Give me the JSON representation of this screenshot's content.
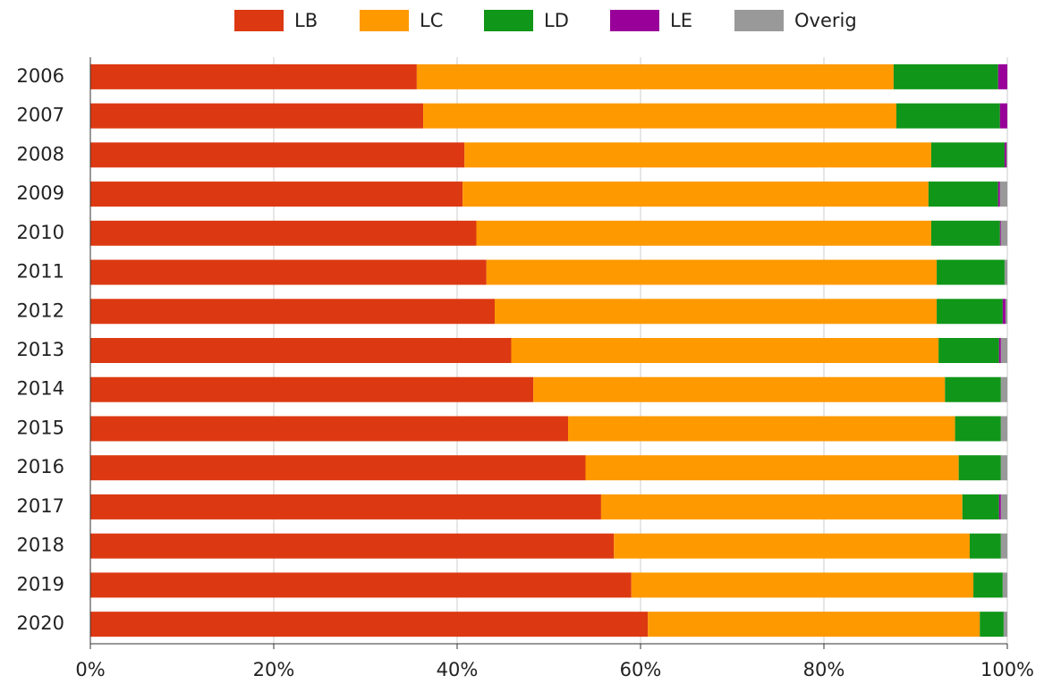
{
  "chart_data": {
    "type": "stacked_barh",
    "categories": [
      "2006",
      "2007",
      "2008",
      "2009",
      "2010",
      "2011",
      "2012",
      "2013",
      "2014",
      "2015",
      "2016",
      "2017",
      "2018",
      "2019",
      "2020"
    ],
    "series": [
      {
        "name": "LB",
        "color": "#dc3912",
        "values": [
          35.6,
          36.3,
          40.8,
          40.6,
          42.1,
          43.2,
          44.1,
          45.9,
          48.3,
          52.1,
          54.0,
          55.7,
          57.1,
          59.0,
          60.8
        ]
      },
      {
        "name": "LC",
        "color": "#ff9900",
        "values": [
          52.0,
          51.6,
          50.9,
          50.8,
          49.6,
          49.1,
          48.2,
          46.6,
          44.9,
          42.2,
          40.7,
          39.4,
          38.8,
          37.3,
          36.2
        ]
      },
      {
        "name": "LD",
        "color": "#109618",
        "values": [
          11.4,
          11.3,
          8.0,
          7.6,
          7.5,
          7.4,
          7.2,
          6.6,
          6.1,
          5.0,
          4.6,
          4.0,
          3.4,
          3.2,
          2.6
        ]
      },
      {
        "name": "LE",
        "color": "#990099",
        "values": [
          1.0,
          0.8,
          0.2,
          0.2,
          0.1,
          0,
          0.3,
          0.2,
          0,
          0,
          0,
          0.2,
          0,
          0,
          0
        ]
      },
      {
        "name": "Overig",
        "color": "#999999",
        "values": [
          0,
          0,
          0.1,
          0.8,
          0.7,
          0.3,
          0.2,
          0.7,
          0.7,
          0.7,
          0.7,
          0.7,
          0.7,
          0.5,
          0.4
        ]
      }
    ],
    "xlim": [
      0,
      100
    ],
    "xticks": [
      {
        "value": 0,
        "label": "0%"
      },
      {
        "value": 20,
        "label": "20%"
      },
      {
        "value": 40,
        "label": "40%"
      },
      {
        "value": 60,
        "label": "60%"
      },
      {
        "value": 80,
        "label": "80%"
      },
      {
        "value": 100,
        "label": "100%"
      }
    ],
    "grid": true,
    "legend": "top"
  }
}
